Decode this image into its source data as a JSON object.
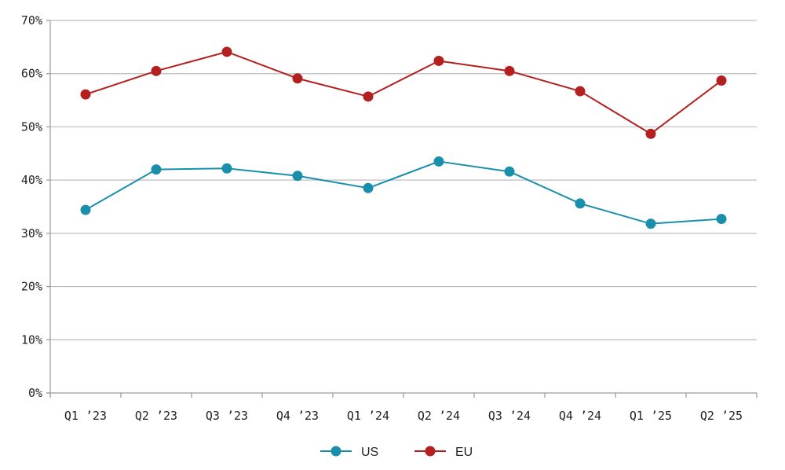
{
  "chart_data": {
    "type": "line",
    "title": "",
    "xlabel": "",
    "ylabel": "",
    "categories": [
      "Q1 ’23",
      "Q2 ’23",
      "Q3 ’23",
      "Q4 ’23",
      "Q1 ’24",
      "Q2 ’24",
      "Q3 ’24",
      "Q4 ’24",
      "Q1 ’25",
      "Q2 ’25"
    ],
    "ylim": [
      0,
      70
    ],
    "yticks": [
      0,
      10,
      20,
      30,
      40,
      50,
      60,
      70
    ],
    "ytick_labels": [
      "0%",
      "10%",
      "20%",
      "30%",
      "40%",
      "50%",
      "60%",
      "70%"
    ],
    "grid": "horizontal",
    "legend_position": "bottom",
    "series": [
      {
        "name": "US",
        "color": "#1a8fab",
        "values": [
          34.4,
          42.0,
          42.2,
          40.8,
          38.5,
          43.5,
          41.6,
          35.6,
          31.8,
          32.7
        ]
      },
      {
        "name": "EU",
        "color": "#b3201f",
        "values": [
          56.1,
          60.5,
          64.1,
          59.1,
          55.7,
          62.4,
          60.5,
          56.7,
          48.7,
          58.7
        ]
      }
    ]
  }
}
